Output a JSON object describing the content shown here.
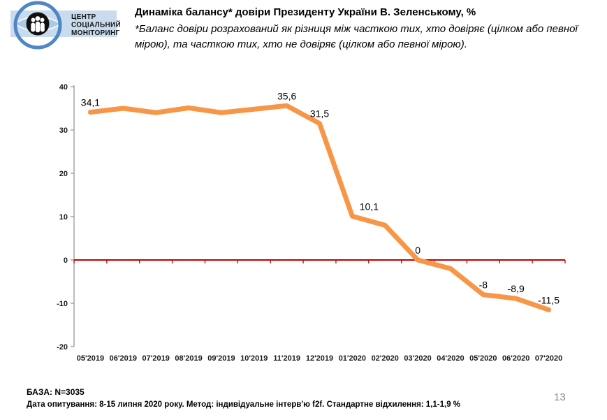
{
  "logo": {
    "line1": "ЦЕНТР",
    "line2": "СОЦІАЛЬНИЙ",
    "line3": "МОНІТОРИНГ"
  },
  "header": {
    "title": "Динаміка балансу* довіри Президенту України В. Зеленському, %",
    "subtitle": "*Баланс довіри розрахований як різниця між часткою тих, хто довіряє (цілком або певної мірою), та часткою тих, хто не довіряє (цілком або певної мірою)."
  },
  "footer": {
    "base": "БАЗА: N=3035",
    "details": "Дата опитування: 8-15 липня  2020 року. Метод: індивідуальне інтерв'ю f2f. Стандартне відхилення: 1,1-1,9 %",
    "page_number": "13"
  },
  "chart_data": {
    "type": "line",
    "title": "Динаміка балансу довіри Президенту України В. Зеленському, %",
    "categories": [
      "05'2019",
      "06'2019",
      "07'2019",
      "08'2019",
      "09'2019",
      "10'2019",
      "11'2019",
      "12'2019",
      "01'2020",
      "02'2020",
      "03'2020",
      "04'2020",
      "05'2020",
      "06'2020",
      "07'2020"
    ],
    "values": [
      34.1,
      35.0,
      34.0,
      35.1,
      34.0,
      34.8,
      35.6,
      31.5,
      10.1,
      8.0,
      0,
      -2.0,
      -8.0,
      -8.9,
      -11.5
    ],
    "point_labels": [
      "34,1",
      null,
      null,
      null,
      null,
      null,
      "35,6",
      "31,5",
      "10,1",
      null,
      "0",
      null,
      "-8",
      "-8,9",
      "-11,5"
    ],
    "label_dx": {
      "8": 24
    },
    "ylim": [
      -20,
      40
    ],
    "y_ticks": [
      40,
      30,
      20,
      10,
      0,
      -10,
      -20
    ],
    "xlabel": "",
    "ylabel": "",
    "grid": false,
    "legend": false,
    "line_color": "#F79646",
    "zero_line_color": "#C00000",
    "axis_color": "#8f8f8f",
    "label_color": "#1a1a1a"
  }
}
